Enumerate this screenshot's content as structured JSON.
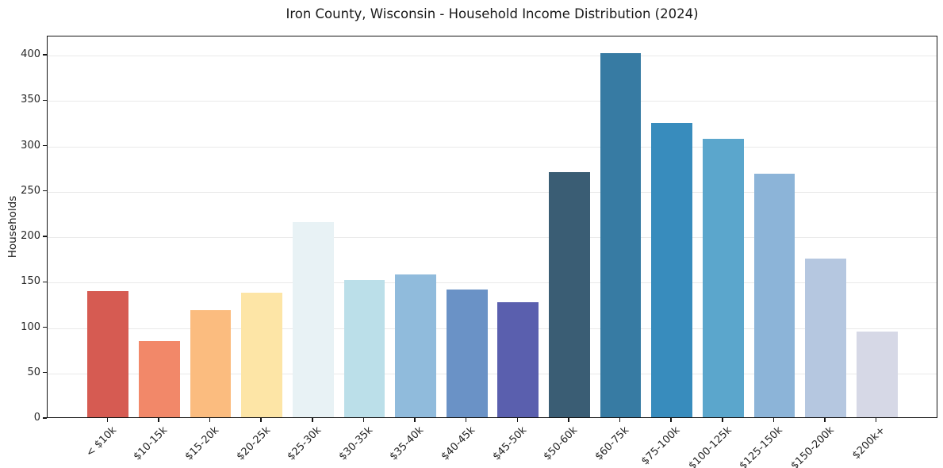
{
  "chart_data": {
    "type": "bar",
    "title": "Iron County, Wisconsin - Household Income Distribution (2024)",
    "xlabel": "",
    "ylabel": "Households",
    "categories": [
      "< $10k",
      "$10-15k",
      "$15-20k",
      "$20-25k",
      "$25-30k",
      "$30-35k",
      "$35-40k",
      "$40-45k",
      "$45-50k",
      "$50-60k",
      "$60-75k",
      "$75-100k",
      "$100-125k",
      "$125-150k",
      "$150-200k",
      "$200k+"
    ],
    "values": [
      139,
      84,
      118,
      137,
      215,
      151,
      157,
      141,
      127,
      270,
      401,
      324,
      307,
      268,
      175,
      94
    ],
    "bar_colors": [
      "#d65b52",
      "#f28869",
      "#fbbc7f",
      "#fde5a6",
      "#e8f2f5",
      "#bbdfe9",
      "#90bbdc",
      "#6a92c6",
      "#5a5fae",
      "#3a5d74",
      "#377ba3",
      "#388cbd",
      "#5ba6cc",
      "#8cb4d8",
      "#b5c7e0",
      "#d6d8e6"
    ],
    "ylim": [
      0,
      421
    ],
    "yticks": [
      0,
      50,
      100,
      150,
      200,
      250,
      300,
      350,
      400
    ],
    "grid": "horizontal",
    "legend": "none"
  }
}
